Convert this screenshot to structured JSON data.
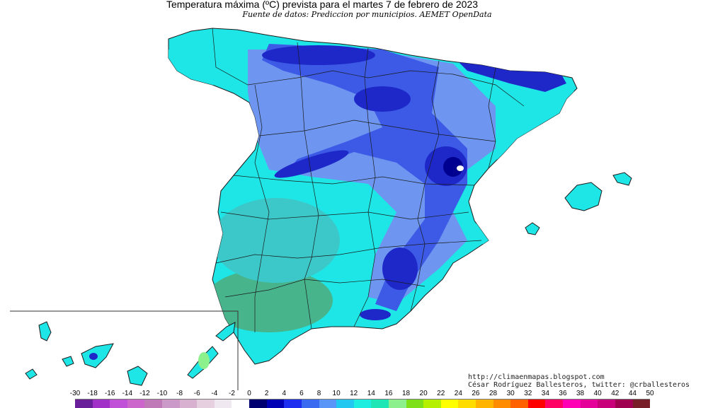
{
  "header": {
    "title": "Temperatura máxima (ºC) prevista para el martes 7 de febrero de 2023",
    "subtitle": "Fuente de datos: Prediccion por municipios. AEMET OpenData"
  },
  "credits": {
    "blog": "http://climaenmapas.blogspot.com",
    "author": "César Rodríguez Ballesteros, twitter: @crballesteros"
  },
  "legend": {
    "ticks": [
      "-30",
      "-18",
      "-16",
      "-14",
      "-12",
      "-10",
      "-8",
      "-6",
      "-4",
      "-2",
      "0",
      "2",
      "4",
      "6",
      "8",
      "10",
      "12",
      "14",
      "16",
      "18",
      "20",
      "22",
      "24",
      "26",
      "28",
      "30",
      "32",
      "34",
      "36",
      "38",
      "40",
      "42",
      "44",
      "50"
    ],
    "colors": [
      "#6a1f9a",
      "#a030c8",
      "#c050d8",
      "#cc66cc",
      "#c07ab8",
      "#cc9ac8",
      "#d8b0d0",
      "#e6d0e0",
      "#f0e8f0",
      "#ffffff",
      "#000070",
      "#0000b4",
      "#1d2ef0",
      "#3a6af0",
      "#5a96f8",
      "#22c8f0",
      "#1eeee0",
      "#1ee6b4",
      "#8cf08c",
      "#7ee018",
      "#b4f000",
      "#ffff00",
      "#ffdc00",
      "#ffb400",
      "#ff8c00",
      "#ff6000",
      "#ff0000",
      "#ff0064",
      "#ff00b4",
      "#e6009a",
      "#c8007a",
      "#a00050",
      "#781e28"
    ]
  },
  "map": {
    "colors": {
      "cold_core": "#000090",
      "very_cold": "#1e28c8",
      "cold": "#3c5ae6",
      "cool": "#6e96f0",
      "mild": "#1ee6e6",
      "mild_teal": "#3cc8c8",
      "warm": "#48b48c",
      "sea": "#ffffff",
      "border": "#1a1a1a"
    },
    "icons": [
      "peninsula-map",
      "balearic-islands",
      "canary-islands-inset"
    ]
  }
}
